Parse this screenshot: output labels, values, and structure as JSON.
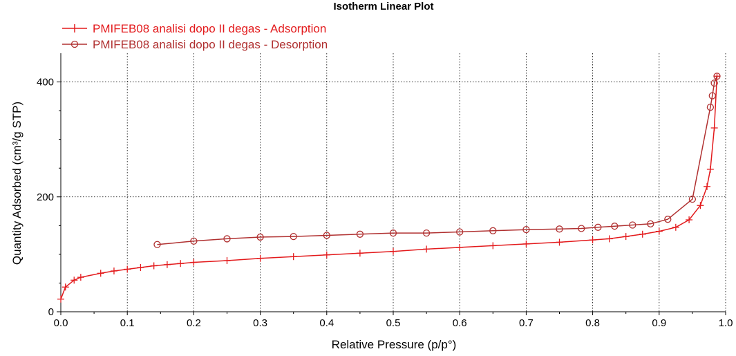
{
  "chart_data": {
    "type": "line",
    "title": "Isotherm Linear Plot",
    "xlabel": "Relative Pressure (p/p°)",
    "ylabel": "Quantity Adsorbed (cm³/g STP)",
    "xlim": [
      0.0,
      1.0
    ],
    "ylim": [
      0,
      450
    ],
    "x_ticks": [
      "0.0",
      "0.1",
      "0.2",
      "0.3",
      "0.4",
      "0.5",
      "0.6",
      "0.7",
      "0.8",
      "0.9",
      "1.0"
    ],
    "y_ticks": [
      "0",
      "200",
      "400"
    ],
    "grid": true,
    "legend_position": "top-left",
    "series": [
      {
        "name": "PMIFEB08 analisi dopo II degas - Adsorption",
        "color": "#e31a1c",
        "marker": "plus",
        "points": [
          [
            0.0,
            22
          ],
          [
            0.007,
            43
          ],
          [
            0.02,
            55
          ],
          [
            0.03,
            60
          ],
          [
            0.06,
            67
          ],
          [
            0.08,
            71
          ],
          [
            0.1,
            74
          ],
          [
            0.12,
            77
          ],
          [
            0.14,
            80
          ],
          [
            0.16,
            82
          ],
          [
            0.18,
            84
          ],
          [
            0.2,
            86
          ],
          [
            0.25,
            89
          ],
          [
            0.3,
            93
          ],
          [
            0.35,
            96
          ],
          [
            0.4,
            99
          ],
          [
            0.45,
            102
          ],
          [
            0.5,
            105
          ],
          [
            0.55,
            109
          ],
          [
            0.6,
            112
          ],
          [
            0.65,
            115
          ],
          [
            0.7,
            118
          ],
          [
            0.75,
            121
          ],
          [
            0.8,
            125
          ],
          [
            0.825,
            127
          ],
          [
            0.85,
            131
          ],
          [
            0.875,
            135
          ],
          [
            0.9,
            140
          ],
          [
            0.925,
            147
          ],
          [
            0.945,
            160
          ],
          [
            0.962,
            185
          ],
          [
            0.972,
            218
          ],
          [
            0.977,
            248
          ],
          [
            0.983,
            320
          ],
          [
            0.987,
            410
          ]
        ]
      },
      {
        "name": "PMIFEB08 analisi dopo II degas - Desorption",
        "color": "#b03030",
        "marker": "circle",
        "points": [
          [
            0.987,
            410
          ],
          [
            0.983,
            398
          ],
          [
            0.98,
            376
          ],
          [
            0.977,
            356
          ],
          [
            0.95,
            196
          ],
          [
            0.913,
            161
          ],
          [
            0.887,
            153
          ],
          [
            0.86,
            151
          ],
          [
            0.833,
            149
          ],
          [
            0.808,
            147
          ],
          [
            0.783,
            145
          ],
          [
            0.75,
            144
          ],
          [
            0.7,
            143
          ],
          [
            0.65,
            141
          ],
          [
            0.6,
            139
          ],
          [
            0.55,
            137
          ],
          [
            0.5,
            137
          ],
          [
            0.45,
            135
          ],
          [
            0.4,
            133
          ],
          [
            0.35,
            131
          ],
          [
            0.3,
            130
          ],
          [
            0.25,
            127
          ],
          [
            0.2,
            123
          ],
          [
            0.145,
            117
          ]
        ]
      }
    ]
  }
}
